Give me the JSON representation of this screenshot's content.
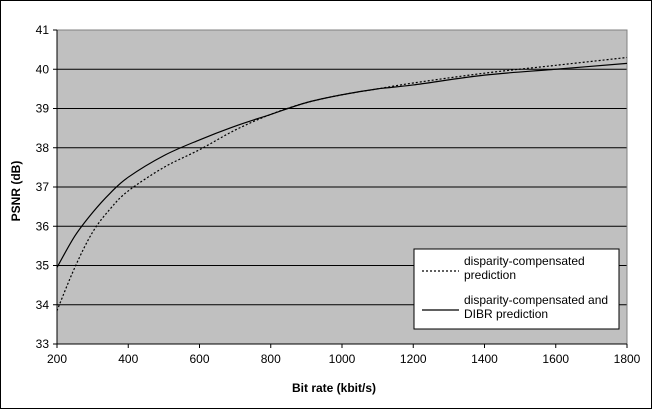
{
  "chart_data": {
    "type": "line",
    "title": "",
    "xlabel": "Bit rate (kbit/s)",
    "ylabel": "PSNR (dB)",
    "xlim": [
      200,
      1800
    ],
    "ylim": [
      33,
      41
    ],
    "xticks": [
      "200",
      "400",
      "600",
      "800",
      "1000",
      "1200",
      "1400",
      "1600",
      "1800"
    ],
    "yticks": [
      "33",
      "34",
      "35",
      "36",
      "37",
      "38",
      "39",
      "40",
      "41"
    ],
    "grid": "horizontal",
    "plot_background": "#c0c0c0",
    "legend_position": "bottom-right",
    "series": [
      {
        "name": "disparity-compensated prediction",
        "style": "dotted",
        "color": "#000000",
        "x": [
          200,
          250,
          300,
          350,
          400,
          500,
          600,
          700,
          800,
          900,
          1000,
          1100,
          1200,
          1400,
          1600,
          1800
        ],
        "y": [
          33.85,
          34.95,
          35.85,
          36.45,
          36.9,
          37.5,
          37.95,
          38.45,
          38.85,
          39.15,
          39.35,
          39.5,
          39.65,
          39.9,
          40.1,
          40.3
        ]
      },
      {
        "name": "disparity-compensated and DIBR prediction",
        "style": "solid",
        "color": "#000000",
        "x": [
          200,
          250,
          300,
          350,
          400,
          500,
          600,
          700,
          800,
          900,
          1000,
          1100,
          1200,
          1400,
          1600,
          1800
        ],
        "y": [
          34.95,
          35.75,
          36.35,
          36.85,
          37.25,
          37.8,
          38.2,
          38.55,
          38.85,
          39.15,
          39.35,
          39.5,
          39.6,
          39.85,
          40.0,
          40.15
        ]
      }
    ],
    "legend": {
      "entries": [
        {
          "lines": [
            "disparity-compensated",
            "prediction"
          ],
          "style": "dotted"
        },
        {
          "lines": [
            "disparity-compensated and",
            "DIBR prediction"
          ],
          "style": "solid"
        }
      ]
    }
  }
}
